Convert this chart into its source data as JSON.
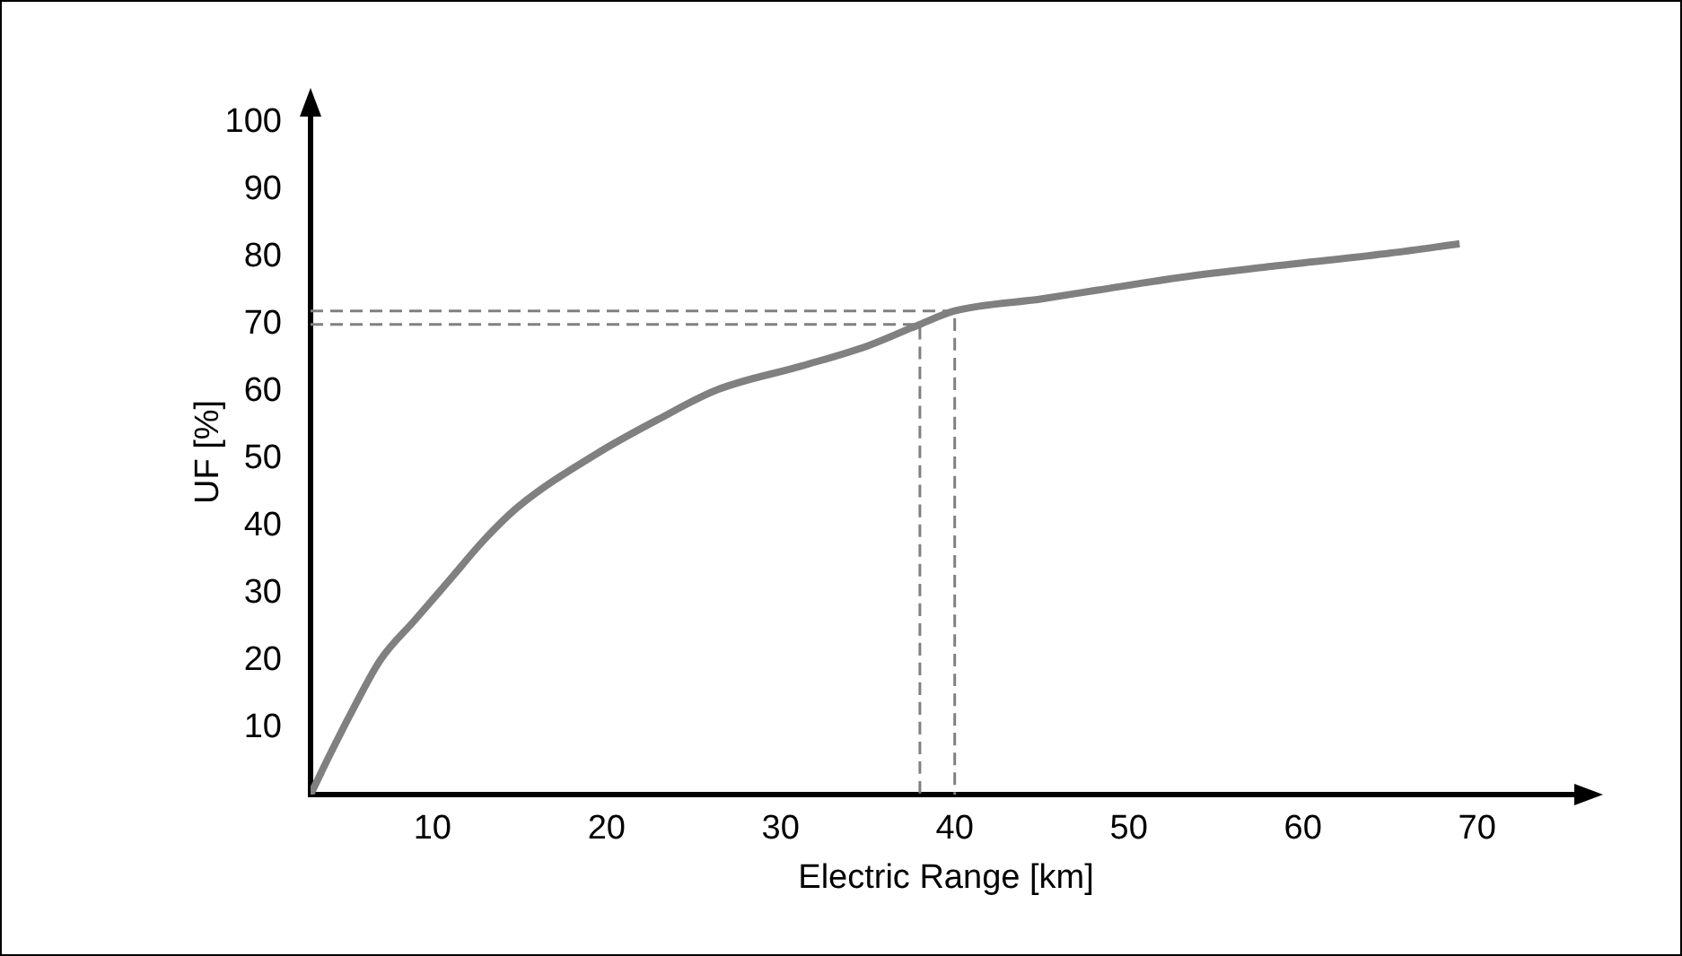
{
  "chart_data": {
    "type": "line",
    "xlabel": "Electric Range [km]",
    "ylabel": "UF [%]",
    "xlim": [
      3,
      76
    ],
    "xticks": [
      10,
      20,
      30,
      40,
      50,
      60,
      70
    ],
    "ylim": [
      0,
      102
    ],
    "yticks": [
      10,
      20,
      30,
      40,
      50,
      60,
      70,
      80,
      90,
      100
    ],
    "grid": false,
    "legend": false,
    "marker": "none",
    "series": [
      {
        "color": "#808080",
        "x": [
          3,
          4.2,
          5.5,
          7,
          9,
          11,
          13,
          15,
          19.6,
          23,
          26.4,
          31.2,
          35,
          38,
          40,
          45,
          48.2,
          53,
          58.4,
          65,
          69
        ],
        "values": [
          0,
          6.4,
          13,
          20,
          26,
          32,
          38,
          43,
          51,
          55.9,
          60.3,
          63.8,
          66.8,
          70,
          72,
          73.8,
          75.1,
          77,
          78.7,
          80.6,
          82
        ]
      },
      {
        "color": "#808080",
        "line_style": "dashed",
        "x": [
          3,
          38,
          38
        ],
        "values": [
          70,
          70,
          0
        ]
      },
      {
        "color": "#808080",
        "line_style": "dashed",
        "x": [
          3,
          40,
          40
        ],
        "values": [
          72,
          72,
          0
        ]
      }
    ]
  }
}
